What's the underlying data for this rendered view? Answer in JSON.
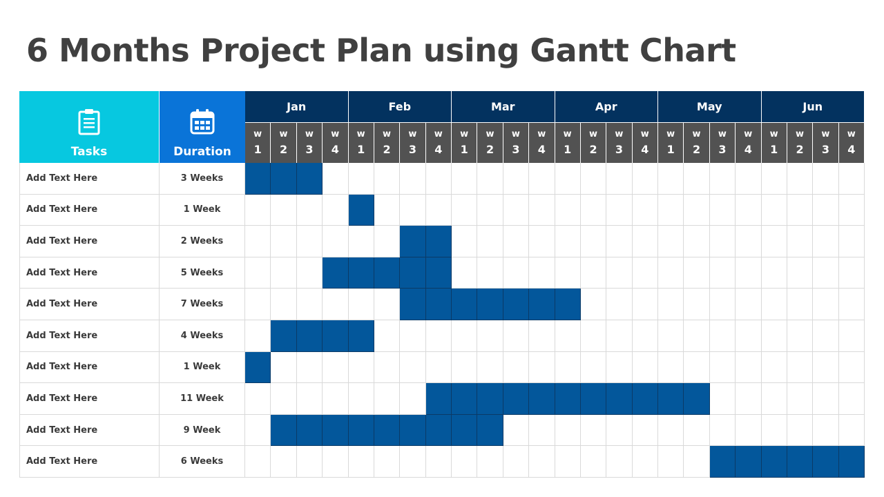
{
  "title": "6 Months Project Plan using Gantt Chart",
  "header": {
    "tasks_label": "Tasks",
    "duration_label": "Duration",
    "tasks_icon": "clipboard-icon",
    "duration_icon": "calendar-icon"
  },
  "colors": {
    "tasks_header": "#07c8e0",
    "duration_header": "#0a74d8",
    "month_header": "#03325f",
    "week_header": "#525252",
    "bar": "#03579b"
  },
  "chart_data": {
    "type": "table",
    "months": [
      "Jan",
      "Feb",
      "Mar",
      "Apr",
      "May",
      "Jun"
    ],
    "week_letter": "w",
    "week_numbers": [
      "1",
      "2",
      "3",
      "4"
    ],
    "tasks": [
      {
        "name": "Add Text Here",
        "duration": "3 Weeks",
        "start_week": 1,
        "length": 3
      },
      {
        "name": "Add Text Here",
        "duration": "1 Week",
        "start_week": 5,
        "length": 1
      },
      {
        "name": "Add Text Here",
        "duration": "2 Weeks",
        "start_week": 7,
        "length": 2
      },
      {
        "name": "Add Text Here",
        "duration": "5 Weeks",
        "start_week": 4,
        "length": 5
      },
      {
        "name": "Add Text Here",
        "duration": "7 Weeks",
        "start_week": 7,
        "length": 7
      },
      {
        "name": "Add Text Here",
        "duration": "4 Weeks",
        "start_week": 2,
        "length": 4
      },
      {
        "name": "Add Text Here",
        "duration": "1 Week",
        "start_week": 1,
        "length": 1
      },
      {
        "name": "Add Text Here",
        "duration": "11 Week",
        "start_week": 8,
        "length": 11
      },
      {
        "name": "Add Text Here",
        "duration": "9 Week",
        "start_week": 2,
        "length": 9
      },
      {
        "name": "Add Text Here",
        "duration": "6 Weeks",
        "start_week": 19,
        "length": 6
      }
    ]
  }
}
